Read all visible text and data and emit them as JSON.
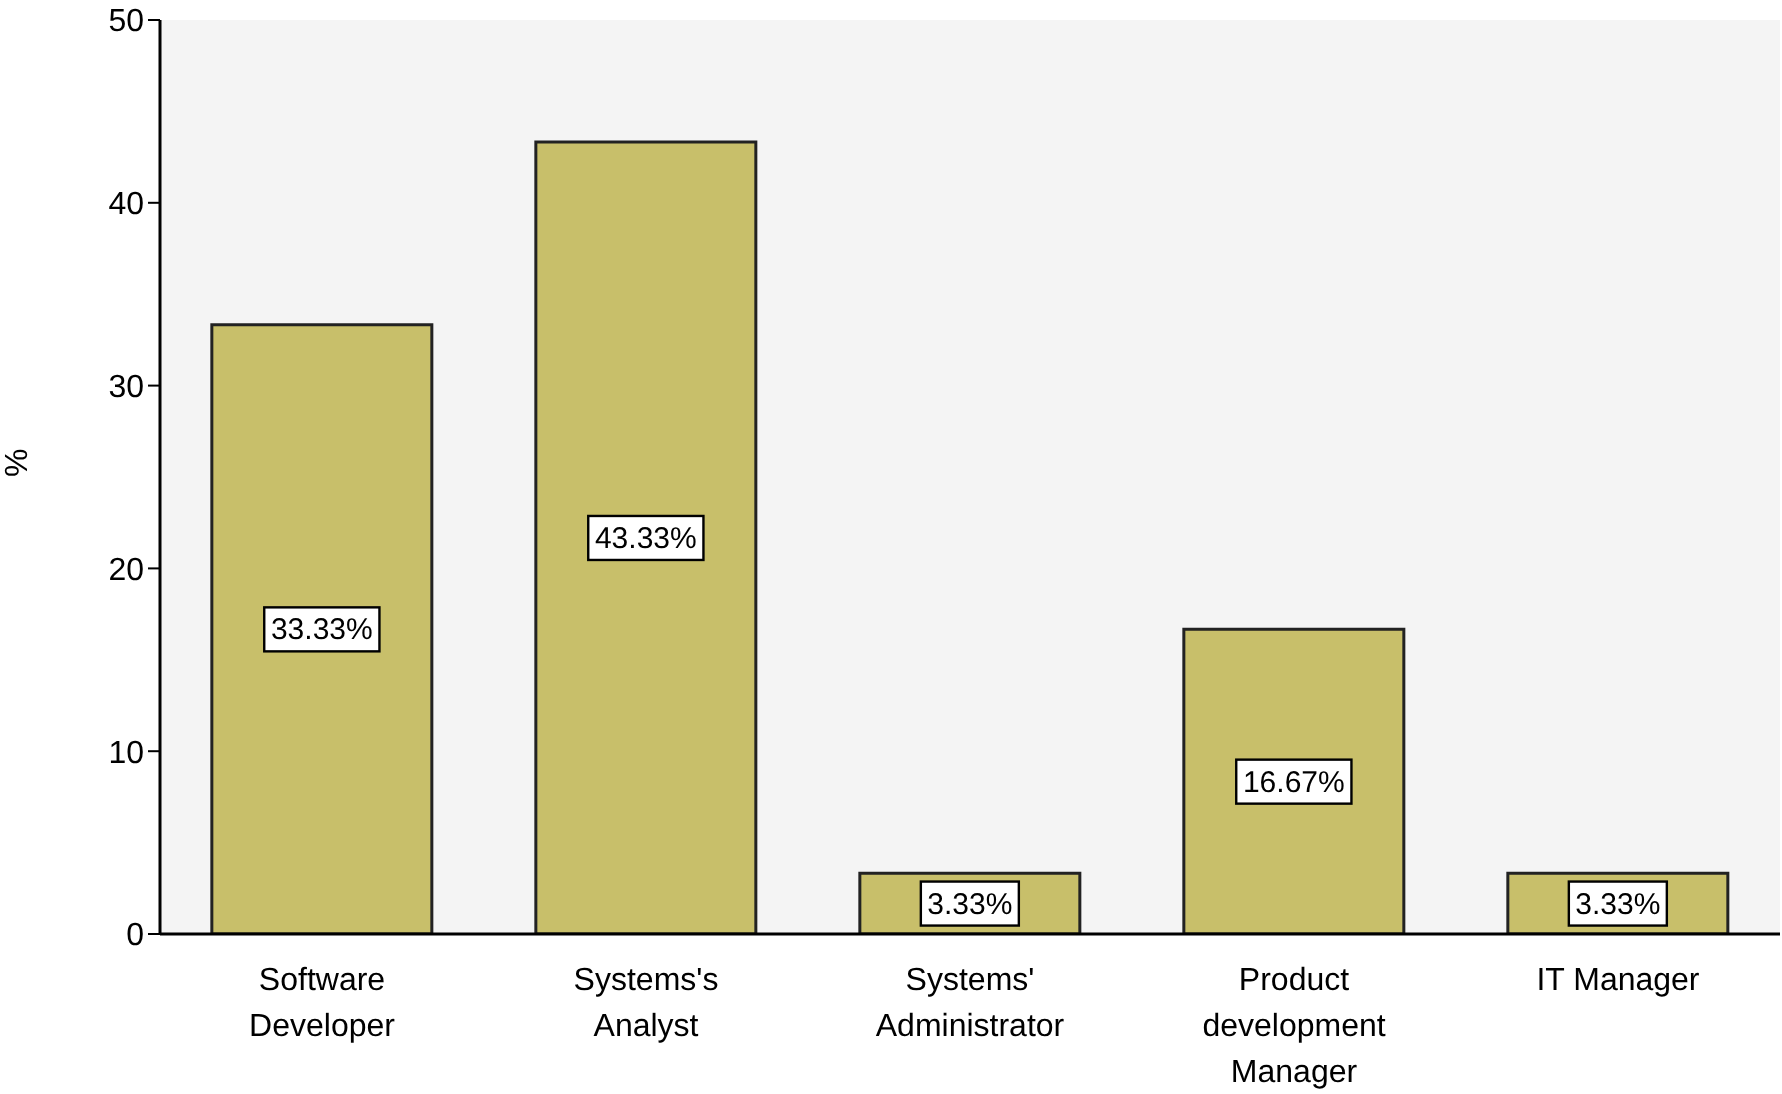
{
  "chart_data": {
    "type": "bar",
    "ylabel": "%",
    "categories": [
      "Software Developer",
      "Systems's Analyst",
      "Systems' Administrator",
      "Product development Manager",
      "IT Manager"
    ],
    "values": [
      33.33,
      43.33,
      3.33,
      16.67,
      3.33
    ],
    "value_labels": [
      "33.33%",
      "43.33%",
      "3.33%",
      "16.67%",
      "3.33%"
    ],
    "color": "#c8bf6a",
    "ylim": [
      0,
      50
    ],
    "yticks": [
      0,
      10,
      20,
      30,
      40,
      50
    ],
    "grid": false,
    "legend": false
  }
}
